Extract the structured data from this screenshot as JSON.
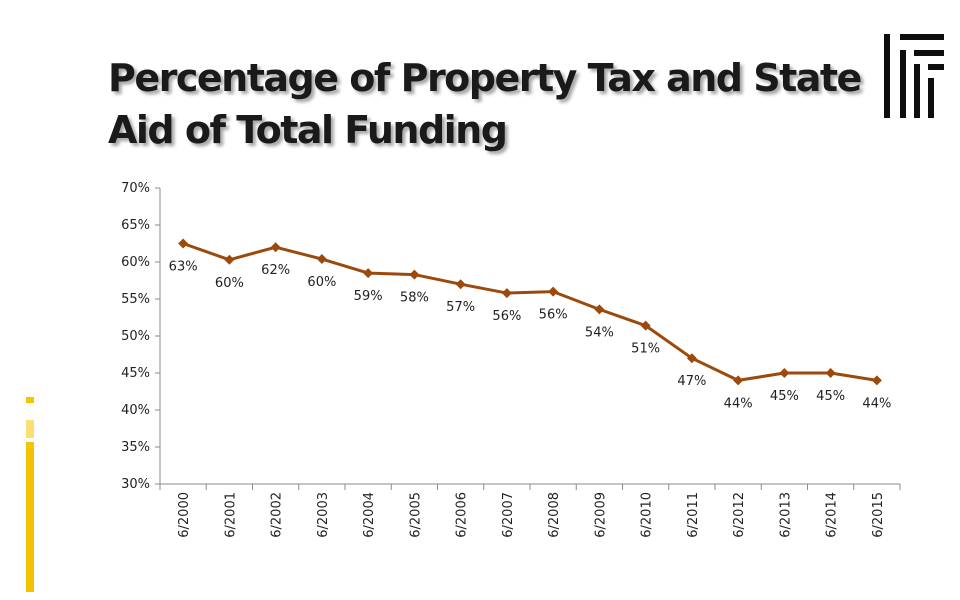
{
  "slide": {
    "title": "Percentage of Property Tax and State Aid of Total Funding"
  },
  "theme": {
    "accent": "#f5c400",
    "line_color": "#9c4a0c",
    "axis_color": "#8a8a8a"
  },
  "icons": {
    "corner": "bars-grid-icon",
    "accent": "vertical-accent-bar"
  },
  "chart_data": {
    "type": "line",
    "title": "",
    "xlabel": "",
    "ylabel": "",
    "ylim": [
      30,
      70
    ],
    "y_ticks": [
      30,
      35,
      40,
      45,
      50,
      55,
      60,
      65,
      70
    ],
    "y_tick_labels": [
      "30%",
      "35%",
      "40%",
      "45%",
      "50%",
      "55%",
      "60%",
      "65%",
      "70%"
    ],
    "grid": false,
    "legend": "none",
    "categories": [
      "6/2000",
      "6/2001",
      "6/2002",
      "6/2003",
      "6/2004",
      "6/2005",
      "6/2006",
      "6/2007",
      "6/2008",
      "6/2009",
      "6/2010",
      "6/2011",
      "6/2012",
      "6/2013",
      "6/2014",
      "6/2015"
    ],
    "series": [
      {
        "values": [
          62.5,
          60.3,
          62.0,
          60.4,
          58.5,
          58.3,
          57.0,
          55.8,
          56.0,
          53.6,
          51.4,
          47.0,
          44.0,
          45.0,
          45.0,
          44.0
        ],
        "labels": [
          "63%",
          "60%",
          "62%",
          "60%",
          "59%",
          "58%",
          "57%",
          "56%",
          "56%",
          "54%",
          "51%",
          "47%",
          "44%",
          "45%",
          "45%",
          "44%"
        ],
        "marker": "diamond"
      }
    ]
  }
}
